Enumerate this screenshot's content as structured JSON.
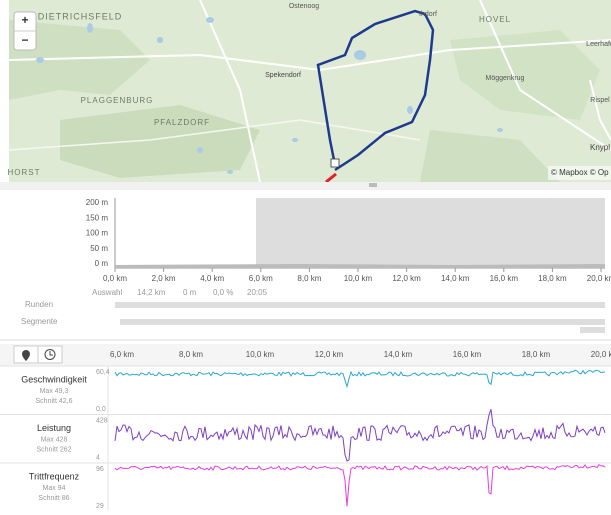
{
  "map": {
    "zoom_in": "+",
    "zoom_out": "−",
    "labels": [
      "DIETRICHSFELD",
      "Ostenoog",
      "Ihdorf",
      "HOVEL",
      "Leerhafe",
      "Spekendorf",
      "Möggenkrug",
      "PLAGGENBURG",
      "PFALZDORF",
      "Rispel",
      "Knypl",
      "HORST"
    ],
    "attribution": "© Mapbox © Op"
  },
  "elevation": {
    "yticks": [
      "200 m",
      "150 m",
      "100 m",
      "50 m",
      "0 m"
    ],
    "xticks": [
      "0,0 km",
      "2,0 km",
      "4,0 km",
      "6,0 km",
      "8,0 km",
      "10,0 km",
      "12,0 km",
      "14,0 km",
      "16,0 km",
      "18,0 km",
      "20,0 km"
    ],
    "selection": [
      "Auswahl",
      "14,2 km",
      "0 m",
      "0,0 %",
      "20:05"
    ],
    "rows": [
      "Runden",
      "Segmente"
    ]
  },
  "detail": {
    "xticks": [
      "6,0 km",
      "8,0 km",
      "10,0 km",
      "12,0 km",
      "14,0 km",
      "16,0 km",
      "18,0 km",
      "20,0 km"
    ],
    "panels": [
      {
        "name": "Geschwindigkeit",
        "max": "Max 49,3",
        "avg": "Schnitt 42,6",
        "top": "60,4",
        "bottom": "0,0",
        "color": "#2aa7d4"
      },
      {
        "name": "Leistung",
        "max": "Max 428",
        "avg": "Schnitt 262",
        "top": "428",
        "bottom": "4",
        "color": "#7a3fc8"
      },
      {
        "name": "Trittfrequenz",
        "max": "Max 94",
        "avg": "Schnitt 86",
        "top": "96",
        "bottom": "29",
        "color": "#e23fe0"
      }
    ]
  }
}
